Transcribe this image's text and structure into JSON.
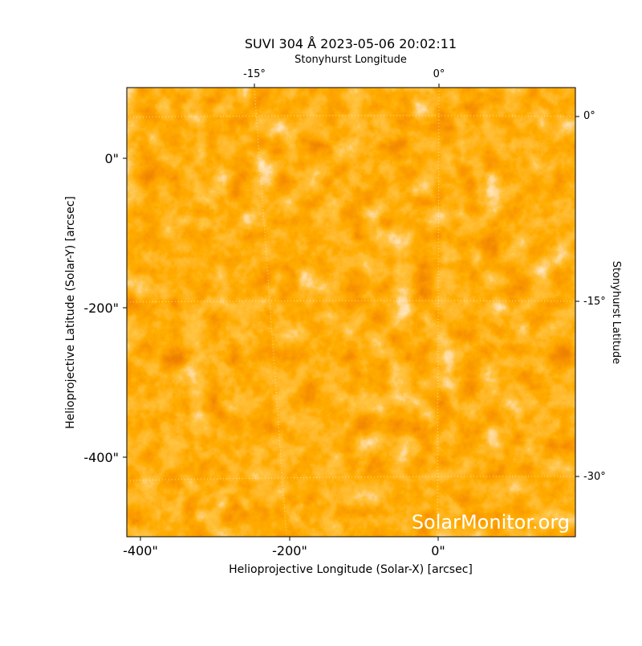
{
  "title": "SUVI 304 Å 2023-05-06 20:02:11",
  "top_axis_label": "Stonyhurst Longitude",
  "right_axis_label": "Stonyhurst Latitude",
  "x_axis_label": "Helioprojective Longitude (Solar-X) [arcsec]",
  "y_axis_label": "Helioprojective Latitude (Solar-Y) [arcsec]",
  "x_ticks": [
    "-400\"",
    "-200\"",
    "0\""
  ],
  "y_ticks": [
    "0\"",
    "-200\"",
    "-400\""
  ],
  "top_ticks": [
    "-15°",
    "0°"
  ],
  "right_ticks": [
    "0°",
    "-15°",
    "-30°"
  ],
  "watermark": "SolarMonitor.org"
}
